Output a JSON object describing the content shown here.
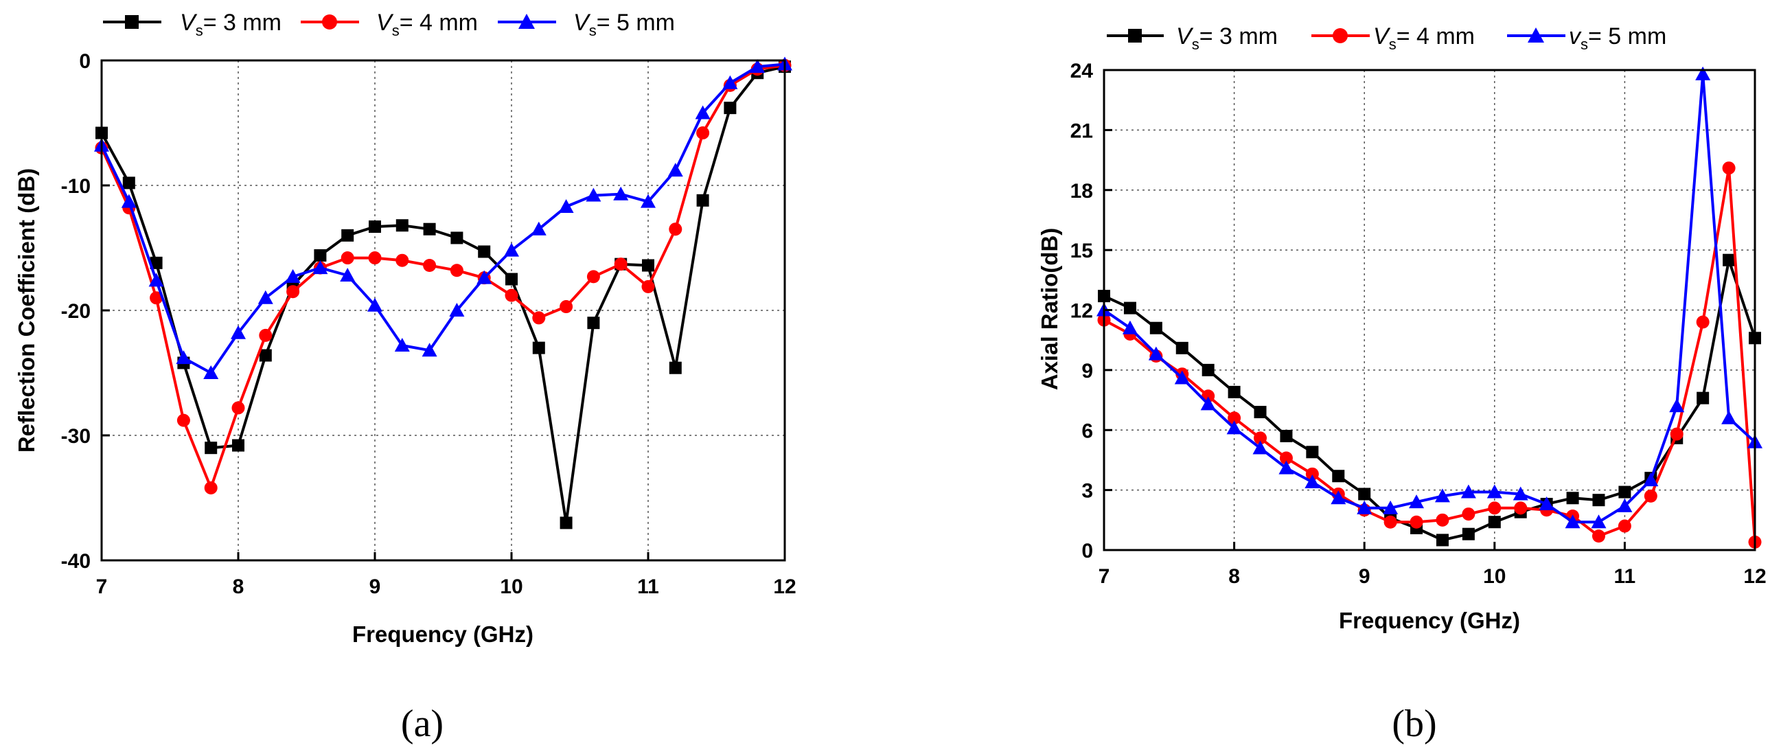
{
  "chart_data": [
    {
      "type": "line",
      "panel_label": "(a)",
      "xlabel": "Frequency (GHz)",
      "ylabel": "Reflection Coefficient (dB)",
      "xlim": [
        7,
        12
      ],
      "ylim": [
        -40,
        0
      ],
      "xticks": [
        7,
        8,
        9,
        10,
        11,
        12
      ],
      "yticks": [
        -40,
        -30,
        -20,
        -10,
        0
      ],
      "grid": true,
      "legend_position": "top",
      "x": [
        7.0,
        7.2,
        7.4,
        7.6,
        7.8,
        8.0,
        8.2,
        8.4,
        8.6,
        8.8,
        9.0,
        9.2,
        9.4,
        9.6,
        9.8,
        10.0,
        10.2,
        10.4,
        10.6,
        10.8,
        11.0,
        11.2,
        11.4,
        11.6,
        11.8,
        12.0
      ],
      "series": [
        {
          "name": "Vs= 3 mm",
          "legend": {
            "symbol": "V",
            "sub": "s",
            "text": "= 3 mm"
          },
          "color": "#000000",
          "marker": "square",
          "values": [
            -5.8,
            -9.8,
            -16.2,
            -24.2,
            -31.0,
            -30.8,
            -23.6,
            -18.0,
            -15.6,
            -14.0,
            -13.3,
            -13.2,
            -13.5,
            -14.2,
            -15.3,
            -17.5,
            -23.0,
            -37.0,
            -21.0,
            -16.3,
            -16.4,
            -24.6,
            -11.2,
            -3.8,
            -1.0,
            -0.5
          ]
        },
        {
          "name": "Vs= 4 mm",
          "legend": {
            "symbol": "V",
            "sub": "s",
            "text": "= 4 mm"
          },
          "color": "#ff0000",
          "marker": "circle",
          "values": [
            -7.0,
            -11.8,
            -19.0,
            -28.8,
            -34.2,
            -27.8,
            -22.0,
            -18.5,
            -16.6,
            -15.8,
            -15.8,
            -16.0,
            -16.4,
            -16.8,
            -17.4,
            -18.8,
            -20.6,
            -19.7,
            -17.3,
            -16.3,
            -18.1,
            -13.5,
            -5.8,
            -2.0,
            -0.7,
            -0.4
          ]
        },
        {
          "name": "Vs= 5 mm",
          "legend": {
            "symbol": "V",
            "sub": "s",
            "text": "= 5 mm"
          },
          "color": "#0000ff",
          "marker": "triangle",
          "values": [
            -6.8,
            -11.3,
            -17.6,
            -23.8,
            -25.0,
            -21.8,
            -19.0,
            -17.3,
            -16.6,
            -17.2,
            -19.6,
            -22.8,
            -23.2,
            -20.0,
            -17.4,
            -15.2,
            -13.5,
            -11.7,
            -10.8,
            -10.7,
            -11.3,
            -8.8,
            -4.2,
            -1.8,
            -0.5,
            -0.3
          ]
        }
      ]
    },
    {
      "type": "line",
      "panel_label": "(b)",
      "xlabel": "Frequency (GHz)",
      "ylabel": "Axial Ratio(dB)",
      "xlim": [
        7,
        12
      ],
      "ylim": [
        0,
        24
      ],
      "xticks": [
        7,
        8,
        9,
        10,
        11,
        12
      ],
      "yticks": [
        0,
        3,
        6,
        9,
        12,
        15,
        18,
        21,
        24
      ],
      "grid": true,
      "legend_position": "top",
      "series": [
        {
          "name": "Vs= 3 mm",
          "legend": {
            "symbol": "V",
            "sub": "s",
            "text": "= 3 mm"
          },
          "color": "#000000",
          "marker": "square",
          "x": [
            7.0,
            7.2,
            7.4,
            7.6,
            7.8,
            8.0,
            8.2,
            8.4,
            8.6,
            8.8,
            9.0,
            9.2,
            9.4,
            9.6,
            9.8,
            10.0,
            10.2,
            10.4,
            10.6,
            10.8,
            11.0,
            11.2,
            11.4,
            11.6,
            11.8,
            12.0
          ],
          "values": [
            12.7,
            12.1,
            11.1,
            10.1,
            9.0,
            7.9,
            6.9,
            5.7,
            4.9,
            3.7,
            2.8,
            1.6,
            1.1,
            0.5,
            0.8,
            1.4,
            1.9,
            2.3,
            2.6,
            2.5,
            2.9,
            3.6,
            5.6,
            7.6,
            14.5,
            10.6
          ]
        },
        {
          "name": "Vs= 4 mm",
          "legend": {
            "symbol": "V",
            "sub": "s",
            "text": "= 4 mm"
          },
          "color": "#ff0000",
          "marker": "circle",
          "x": [
            7.0,
            7.2,
            7.4,
            7.6,
            7.8,
            8.0,
            8.2,
            8.4,
            8.6,
            8.8,
            9.0,
            9.2,
            9.4,
            9.6,
            9.8,
            10.0,
            10.2,
            10.4,
            10.6,
            10.8,
            11.0,
            11.2,
            11.4,
            11.6,
            11.8,
            12.0
          ],
          "values": [
            11.5,
            10.8,
            9.7,
            8.8,
            7.7,
            6.6,
            5.6,
            4.6,
            3.8,
            2.8,
            2.0,
            1.4,
            1.4,
            1.5,
            1.8,
            2.1,
            2.1,
            2.0,
            1.7,
            0.7,
            1.2,
            2.7,
            5.8,
            11.4,
            19.1,
            0.4
          ]
        },
        {
          "name": "vs= 5 mm",
          "legend": {
            "symbol": "v",
            "sub": "s",
            "text": "= 5 mm"
          },
          "color": "#0000ff",
          "marker": "triangle",
          "x": [
            7.0,
            7.2,
            7.4,
            7.6,
            7.8,
            8.0,
            8.2,
            8.4,
            8.6,
            8.8,
            9.0,
            9.2,
            9.4,
            9.6,
            9.8,
            10.0,
            10.2,
            10.4,
            10.6,
            10.8,
            11.0,
            11.2,
            11.4,
            11.6,
            11.8,
            12.0
          ],
          "values": [
            12.0,
            11.1,
            9.8,
            8.6,
            7.3,
            6.1,
            5.1,
            4.1,
            3.4,
            2.6,
            2.1,
            2.1,
            2.4,
            2.7,
            2.9,
            2.9,
            2.8,
            2.3,
            1.4,
            1.4,
            2.2,
            3.5,
            7.2,
            23.8,
            6.6,
            5.4
          ]
        }
      ]
    }
  ]
}
